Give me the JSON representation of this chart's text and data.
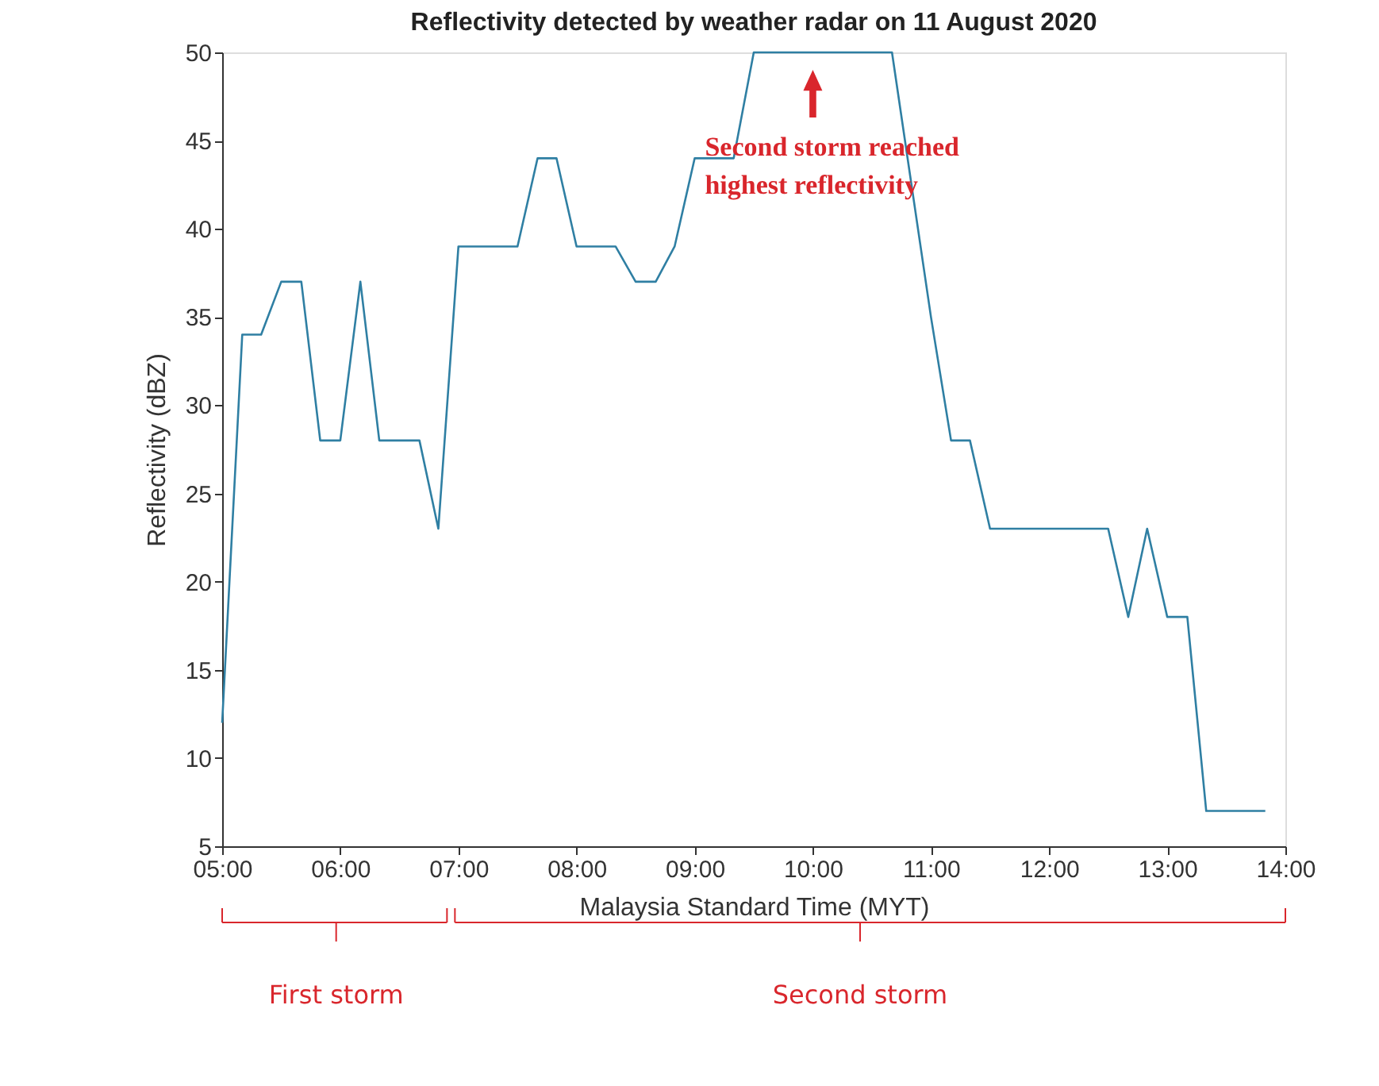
{
  "chart_data": {
    "type": "line",
    "title": "Reflectivity detected by weather radar on 11 August 2020",
    "xlabel": "Malaysia Standard Time (MYT)",
    "ylabel": "Reflectivity (dBZ)",
    "xlim": [
      5,
      14
    ],
    "ylim": [
      5,
      50
    ],
    "xticks": [
      {
        "value": 5,
        "label": "05:00"
      },
      {
        "value": 6,
        "label": "06:00"
      },
      {
        "value": 7,
        "label": "07:00"
      },
      {
        "value": 8,
        "label": "08:00"
      },
      {
        "value": 9,
        "label": "09:00"
      },
      {
        "value": 10,
        "label": "10:00"
      },
      {
        "value": 11,
        "label": "11:00"
      },
      {
        "value": 12,
        "label": "12:00"
      },
      {
        "value": 13,
        "label": "13:00"
      },
      {
        "value": 14,
        "label": "14:00"
      }
    ],
    "yticks": [
      5,
      10,
      15,
      20,
      25,
      30,
      35,
      40,
      45,
      50
    ],
    "grid": false,
    "marker": "none",
    "line_style": "solid",
    "series": [
      {
        "color": "#2f7fa3",
        "x": [
          5.0,
          5.17,
          5.33,
          5.5,
          5.67,
          5.83,
          6.0,
          6.17,
          6.33,
          6.67,
          6.83,
          7.0,
          7.5,
          7.67,
          7.83,
          8.0,
          8.33,
          8.5,
          8.67,
          8.83,
          9.0,
          9.33,
          9.5,
          10.67,
          11.0,
          11.17,
          11.33,
          11.5,
          12.5,
          12.67,
          12.83,
          13.0,
          13.17,
          13.33,
          13.83
        ],
        "values": [
          12,
          34,
          34,
          37,
          37,
          28,
          28,
          37,
          28,
          28,
          23,
          39,
          39,
          44,
          44,
          39,
          39,
          37,
          37,
          39,
          44,
          44,
          50,
          50,
          35,
          28,
          28,
          23,
          23,
          18,
          23,
          18,
          18,
          7,
          7
        ]
      }
    ],
    "annotations": [
      "Second storm reached highest reflectivity",
      "First storm",
      "Second storm"
    ]
  }
}
